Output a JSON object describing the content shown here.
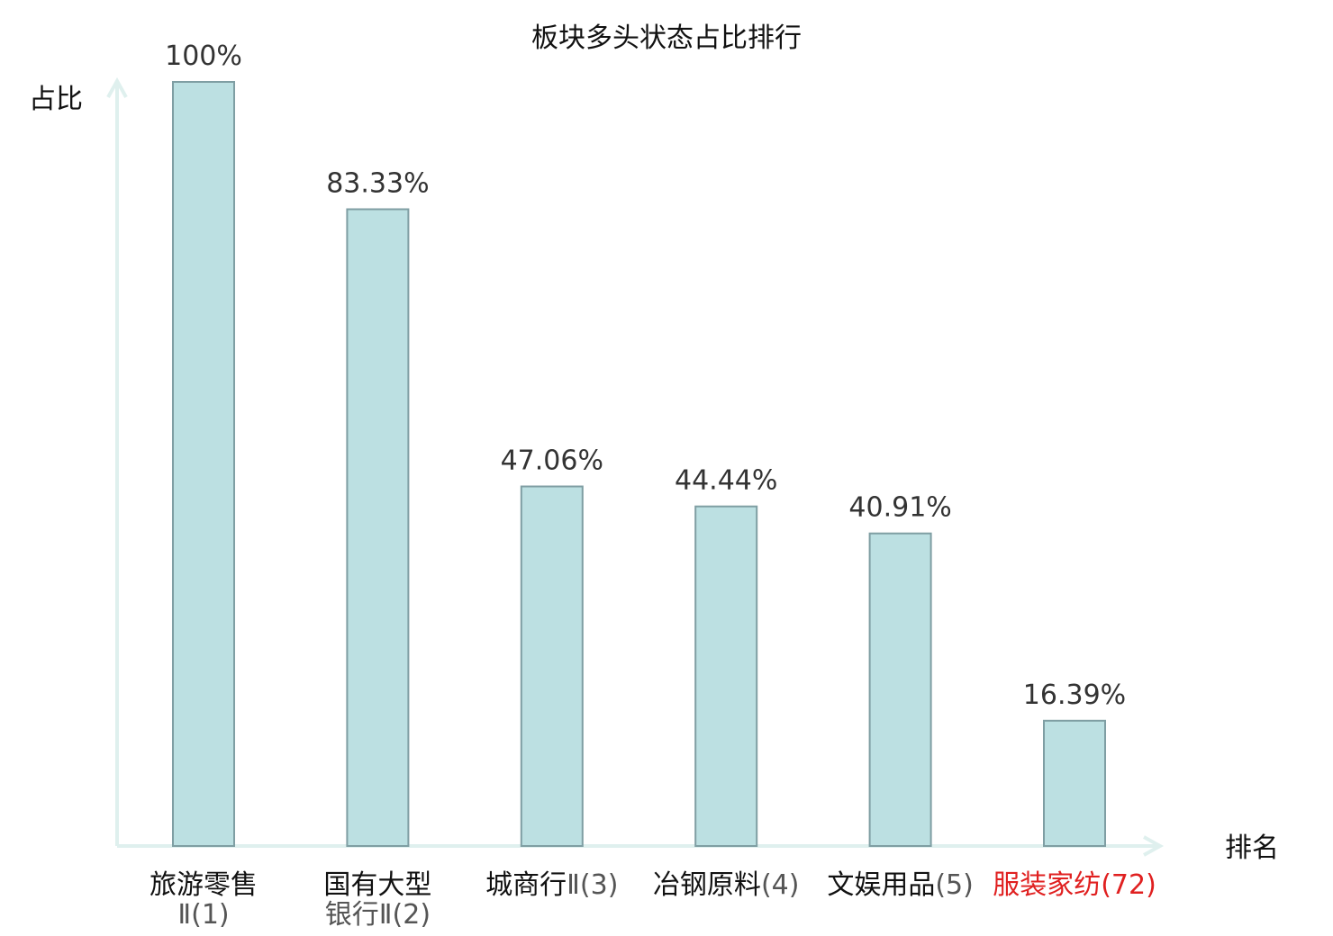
{
  "chart_data": {
    "type": "bar",
    "title": "板块多头状态占比排行",
    "ylabel": "占比",
    "xlabel": "排名",
    "ylim": [
      0,
      100
    ],
    "grid": false,
    "categories": [
      {
        "name": "旅游零售",
        "suffix": "Ⅱ(1)",
        "wrap": true
      },
      {
        "name": "国有大型",
        "suffix": "银行Ⅱ(2)",
        "wrap": true
      },
      {
        "name": "城商行",
        "suffix": "Ⅱ(3)",
        "wrap": false
      },
      {
        "name": "冶钢原料",
        "suffix": "(4)",
        "wrap": false
      },
      {
        "name": "文娱用品",
        "suffix": "(5)",
        "wrap": false
      },
      {
        "name": "服装家纺",
        "suffix": "(72)",
        "wrap": false,
        "highlight": true
      }
    ],
    "values": [
      100,
      83.33,
      47.06,
      44.44,
      40.91,
      16.39
    ],
    "value_labels": [
      "100%",
      "83.33%",
      "47.06%",
      "44.44%",
      "40.91%",
      "16.39%"
    ]
  },
  "colors": {
    "bar_fill": "#bce0e2",
    "bar_stroke": "#7f9ea3",
    "axis": "#dff0ee",
    "highlight": "#e02020"
  }
}
